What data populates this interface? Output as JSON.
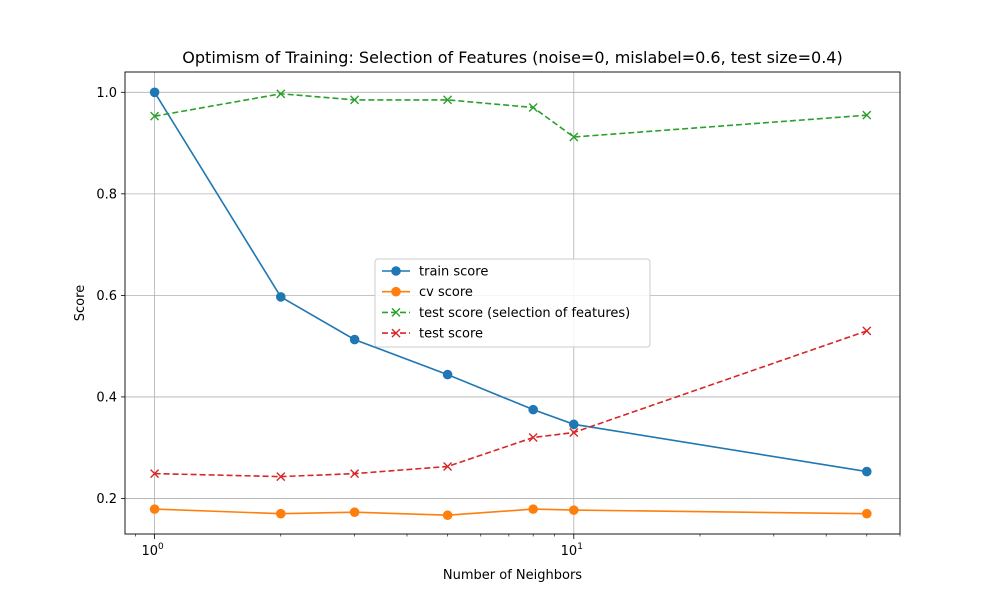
{
  "chart_data": {
    "type": "line",
    "title": "Optimism of Training: Selection of Features (noise=0, mislabel=0.6, test size=0.4)",
    "xlabel": "Number of Neighbors",
    "ylabel": "Score",
    "x_scale": "log",
    "xlim": [
      0.85,
      60
    ],
    "ylim": [
      0.13,
      1.04
    ],
    "x": [
      1,
      2,
      3,
      5,
      8,
      10,
      50
    ],
    "x_ticks": [
      {
        "value": 1,
        "base": "10",
        "exp": "0"
      },
      {
        "value": 10,
        "base": "10",
        "exp": "1"
      }
    ],
    "y_ticks": [
      "0.2",
      "0.4",
      "0.6",
      "0.8",
      "1.0"
    ],
    "grid": true,
    "legend_position": "center",
    "series": [
      {
        "name": "train score",
        "color": "#1f77b4",
        "style": "solid",
        "marker": "circle",
        "values": [
          1.0,
          0.597,
          0.513,
          0.444,
          0.375,
          0.346,
          0.253
        ]
      },
      {
        "name": "cv score",
        "color": "#ff7f0e",
        "style": "solid",
        "marker": "circle",
        "values": [
          0.179,
          0.17,
          0.173,
          0.167,
          0.179,
          0.177,
          0.17
        ]
      },
      {
        "name": "test score (selection of features)",
        "color": "#2ca02c",
        "style": "dashed",
        "marker": "x",
        "values": [
          0.953,
          0.997,
          0.985,
          0.985,
          0.97,
          0.912,
          0.955
        ]
      },
      {
        "name": "test score",
        "color": "#d62728",
        "style": "dashed",
        "marker": "x",
        "values": [
          0.249,
          0.243,
          0.249,
          0.263,
          0.32,
          0.33,
          0.53
        ]
      }
    ]
  }
}
